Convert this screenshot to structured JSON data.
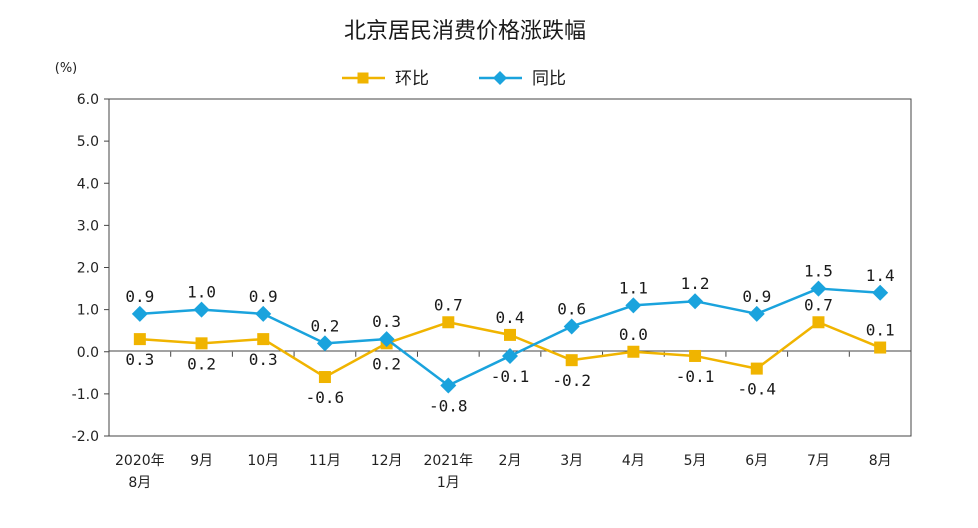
{
  "chart_data": {
    "type": "line",
    "title": "北京居民消费价格涨跌幅",
    "ylabel": "(%)",
    "ylim": [
      -2.0,
      6.0
    ],
    "yticks": [
      "6.0",
      "5.0",
      "4.0",
      "3.0",
      "2.0",
      "1.0",
      "0.0",
      "-1.0",
      "-2.0"
    ],
    "categories": [
      [
        "2020年",
        "8月"
      ],
      [
        "9月"
      ],
      [
        "10月"
      ],
      [
        "11月"
      ],
      [
        "12月"
      ],
      [
        "2021年",
        "1月"
      ],
      [
        "2月"
      ],
      [
        "3月"
      ],
      [
        "4月"
      ],
      [
        "5月"
      ],
      [
        "6月"
      ],
      [
        "7月"
      ],
      [
        "8月"
      ]
    ],
    "legend_position": "top",
    "grid": false,
    "series": [
      {
        "name": "环比",
        "color": "#f0b400",
        "marker": "square",
        "values": [
          0.3,
          0.2,
          0.3,
          -0.6,
          0.2,
          0.7,
          0.4,
          -0.2,
          0.0,
          -0.1,
          -0.4,
          0.7,
          0.1
        ],
        "labels": [
          "0.3",
          "0.2",
          "0.3",
          "-0.6",
          "0.2",
          "0.7",
          "0.4",
          "-0.2",
          "0.0",
          "-0.1",
          "-0.4",
          "0.7",
          "0.1"
        ],
        "label_pos": [
          "below",
          "below",
          "below",
          "below",
          "below",
          "above",
          "above",
          "below",
          "above",
          "below",
          "below",
          "above",
          "above"
        ]
      },
      {
        "name": "同比",
        "color": "#1aa3dd",
        "marker": "diamond",
        "values": [
          0.9,
          1.0,
          0.9,
          0.2,
          0.3,
          -0.8,
          -0.1,
          0.6,
          1.1,
          1.2,
          0.9,
          1.5,
          1.4
        ],
        "labels": [
          "0.9",
          "1.0",
          "0.9",
          "0.2",
          "0.3",
          "-0.8",
          "-0.1",
          "0.6",
          "1.1",
          "1.2",
          "0.9",
          "1.5",
          "1.4"
        ],
        "label_pos": [
          "above",
          "above",
          "above",
          "above",
          "above",
          "below",
          "below",
          "above",
          "above",
          "above",
          "above",
          "above",
          "above"
        ]
      }
    ]
  }
}
